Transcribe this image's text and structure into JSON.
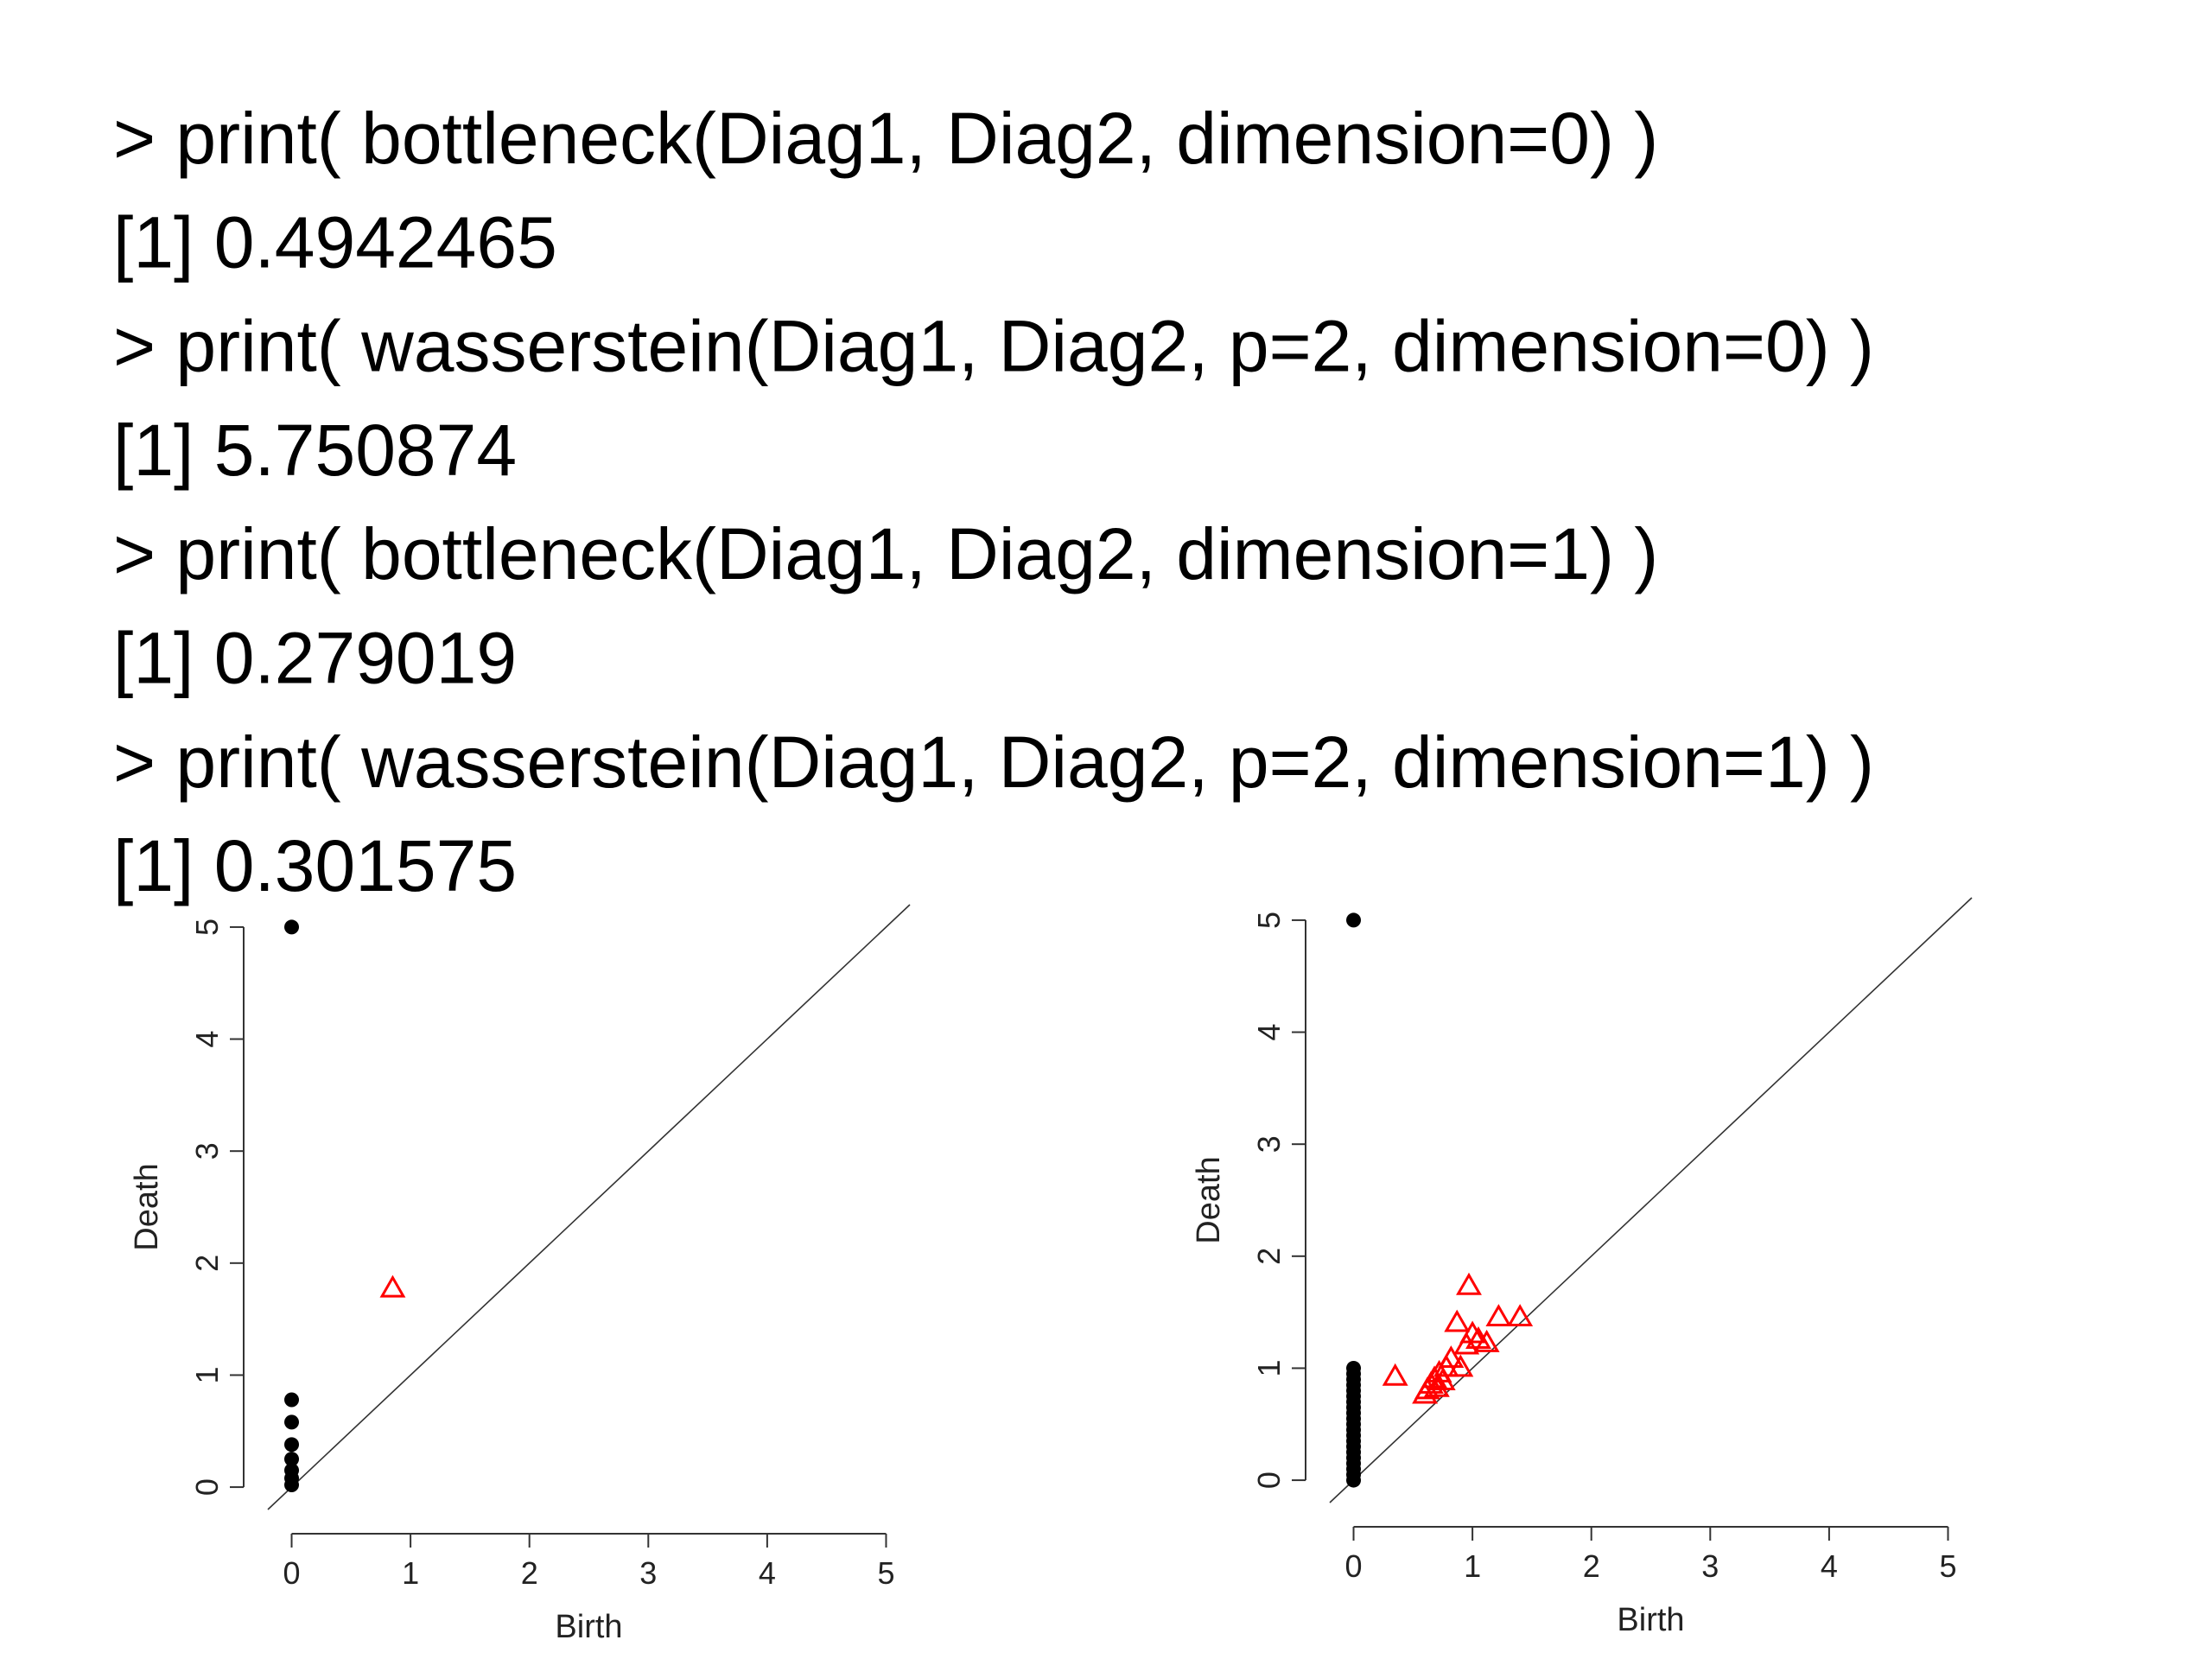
{
  "console": {
    "lines": [
      "> print( bottleneck(Diag1, Diag2, dimension=0) )",
      "[1] 0.4942465",
      "> print( wasserstein(Diag1, Diag2, p=2, dimension=0) )",
      "[1] 5.750874",
      "> print( bottleneck(Diag1, Diag2, dimension=1) )",
      "[1] 0.279019",
      "> print( wasserstein(Diag1, Diag2, p=2, dimension=1) )",
      "[1] 0.301575"
    ]
  },
  "chart_data": [
    {
      "type": "scatter",
      "xlabel": "Birth",
      "ylabel": "Death",
      "xlim": [
        -0.2,
        5.2
      ],
      "ylim": [
        -0.2,
        5.2
      ],
      "xticks": [
        0,
        1,
        2,
        3,
        4,
        5
      ],
      "yticks": [
        0,
        1,
        2,
        3,
        4,
        5
      ],
      "diagonal": true,
      "series": [
        {
          "marker": "circle",
          "color": "#000000",
          "x": [
            0,
            0,
            0,
            0,
            0,
            0,
            0,
            0
          ],
          "values": [
            5,
            0.78,
            0.58,
            0.38,
            0.25,
            0.15,
            0.08,
            0.02
          ]
        },
        {
          "marker": "triangle",
          "color": "#ff0000",
          "x": [
            0.85
          ],
          "values": [
            1.77
          ]
        }
      ]
    },
    {
      "type": "scatter",
      "xlabel": "Birth",
      "ylabel": "Death",
      "xlim": [
        -0.2,
        5.2
      ],
      "ylim": [
        -0.2,
        5.2
      ],
      "xticks": [
        0,
        1,
        2,
        3,
        4,
        5
      ],
      "yticks": [
        0,
        1,
        2,
        3,
        4,
        5
      ],
      "diagonal": true,
      "series": [
        {
          "marker": "circle",
          "color": "#000000",
          "x": [
            0,
            0,
            0,
            0,
            0,
            0,
            0,
            0,
            0,
            0,
            0,
            0,
            0,
            0,
            0,
            0,
            0,
            0,
            0,
            0,
            0,
            0
          ],
          "values": [
            5,
            0,
            0.05,
            0.1,
            0.15,
            0.2,
            0.25,
            0.3,
            0.35,
            0.4,
            0.45,
            0.5,
            0.55,
            0.6,
            0.65,
            0.7,
            0.75,
            0.8,
            0.85,
            0.9,
            0.95,
            1.0
          ]
        },
        {
          "marker": "triangle",
          "color": "#ff0000",
          "x": [
            0.35,
            0.97,
            0.87,
            1.22,
            1.4,
            1.0,
            1.05,
            1.12,
            0.95,
            0.82,
            0.78,
            0.9,
            0.72,
            0.68,
            0.65,
            0.62,
            0.7,
            0.75,
            0.6
          ],
          "values": [
            0.92,
            1.73,
            1.4,
            1.45,
            1.45,
            1.3,
            1.25,
            1.22,
            1.2,
            1.08,
            1.0,
            1.0,
            0.95,
            0.9,
            0.85,
            0.8,
            0.82,
            0.88,
            0.76
          ]
        }
      ]
    }
  ]
}
